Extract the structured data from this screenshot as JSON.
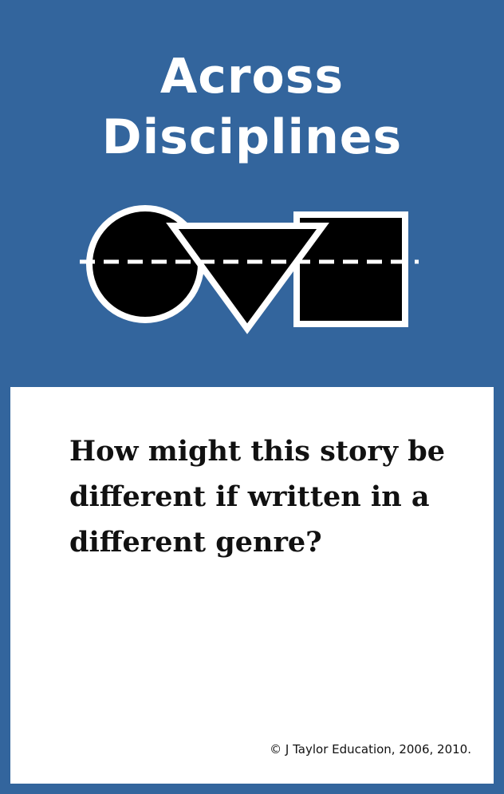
{
  "card": {
    "title_line1": "Across",
    "title_line2": "Disciplines",
    "question": "How might this story be different if written in a different genre?",
    "copyright": "© J Taylor Education, 2006, 2010.",
    "logo_icon": "shapes-circle-triangle-square-icon"
  },
  "colors": {
    "background": "#33659d",
    "panel": "#ffffff",
    "shape_fill": "#000000",
    "shape_stroke": "#ffffff"
  }
}
